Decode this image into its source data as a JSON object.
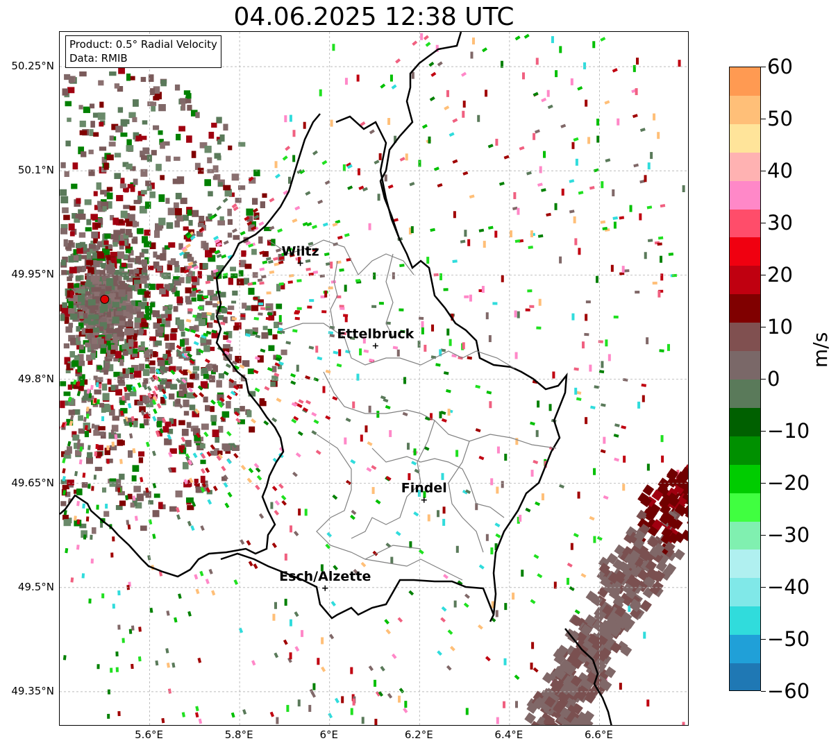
{
  "title": "04.06.2025 12:38 UTC",
  "info": {
    "product": "Product: 0.5° Radial Velocity",
    "source": "Data: RMIB"
  },
  "axes": {
    "lon_ticks": [
      "5.6°E",
      "5.8°E",
      "6°E",
      "6.2°E",
      "6.4°E",
      "6.6°E"
    ],
    "lat_ticks": [
      "50.25°N",
      "50.1°N",
      "49.95°N",
      "49.8°N",
      "49.65°N",
      "49.5°N",
      "49.35°N"
    ],
    "lon_range": [
      5.4,
      6.8
    ],
    "lat_range": [
      49.3,
      50.3
    ],
    "grid": true
  },
  "colorbar": {
    "label": "m/s",
    "ticks": [
      "60",
      "50",
      "40",
      "30",
      "20",
      "10",
      "0",
      "−10",
      "−20",
      "−30",
      "−40",
      "−50",
      "−60"
    ],
    "range": [
      -60,
      60
    ],
    "colors": [
      "#ff9a52",
      "#ffbf78",
      "#ffe49a",
      "#ffb2b2",
      "#ff88c8",
      "#ff4d6a",
      "#f00010",
      "#c00010",
      "#800000",
      "#805050",
      "#7a6868",
      "#5a7a5a",
      "#006000",
      "#009000",
      "#00cc00",
      "#40ff40",
      "#80f0b0",
      "#b0f0f0",
      "#80e8e8",
      "#30dcdc",
      "#20a0d8",
      "#1f78b4"
    ]
  },
  "radar": {
    "name": "radar-site",
    "lon": 5.5,
    "lat": 49.915,
    "color": "#e00000"
  },
  "cities": [
    {
      "name": "Wiltz",
      "lon": 5.935,
      "lat": 49.967
    },
    {
      "name": "Ettelbruck",
      "lon": 6.102,
      "lat": 49.848
    },
    {
      "name": "Findel",
      "lon": 6.21,
      "lat": 49.626
    },
    {
      "name": "Esch/Alzette",
      "lon": 5.99,
      "lat": 49.499
    }
  ]
}
